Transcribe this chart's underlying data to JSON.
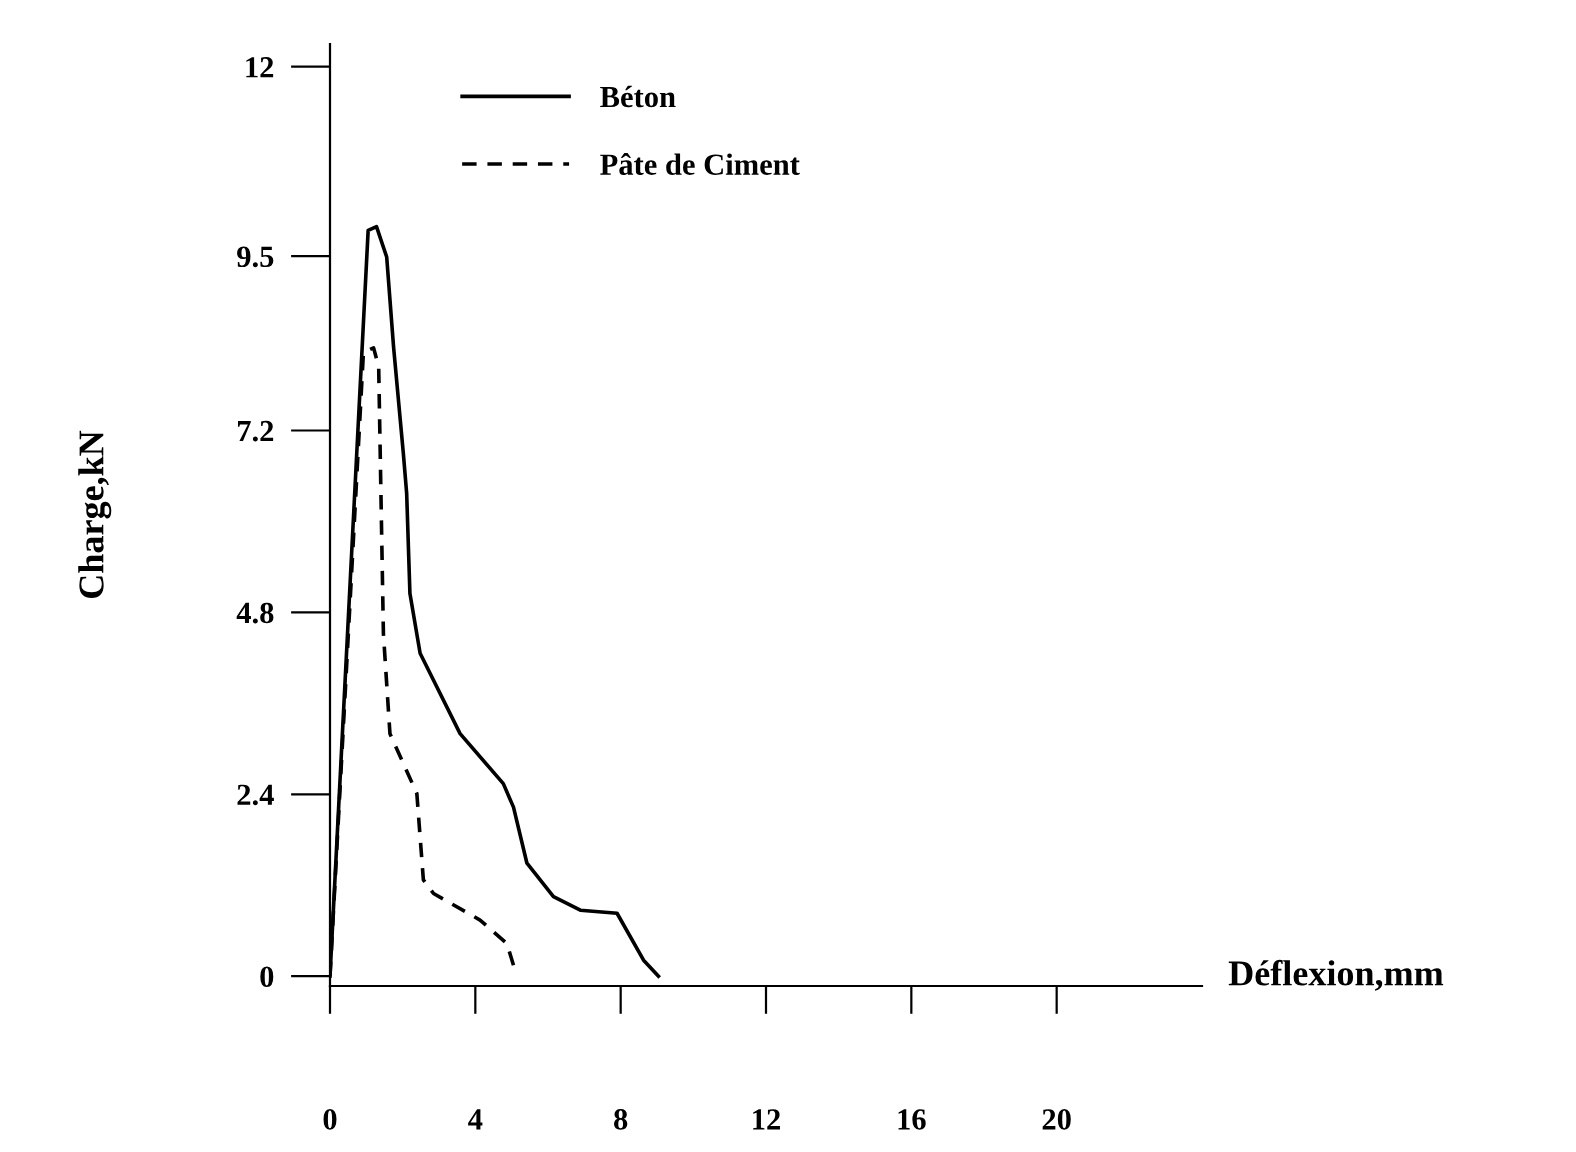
{
  "chart_data": {
    "type": "line",
    "xlabel": "Déflexion,mm",
    "ylabel": "Charge,kN",
    "xlim": [
      0,
      24
    ],
    "xticks": [
      0,
      4,
      8,
      12,
      16,
      20
    ],
    "ylim": [
      -0.13,
      12.3
    ],
    "yticks": [
      0,
      2.4,
      4.8,
      7.2,
      9.5,
      12
    ],
    "grid": false,
    "legend": "top left",
    "marker": "none",
    "series": [
      {
        "name": "Béton",
        "color": "#000000",
        "line_style": "solid",
        "x": [
          0,
          1.05,
          1.28,
          1.56,
          1.75,
          2.02,
          2.11,
          2.2,
          2.48,
          3.58,
          4.77,
          5.05,
          5.42,
          6.15,
          6.89,
          7.9,
          8.63,
          9.04
        ],
        "values": [
          0,
          9.84,
          9.89,
          9.49,
          8.3,
          6.89,
          6.37,
          5.05,
          4.26,
          3.2,
          2.54,
          2.23,
          1.49,
          1.05,
          0.87,
          0.83,
          0.21,
          0
        ]
      },
      {
        "name": "Pâte de Ciment",
        "color": "#000000",
        "line_style": "dashed",
        "x": [
          0,
          0.92,
          1.2,
          1.34,
          1.47,
          1.65,
          2.39,
          2.57,
          2.85,
          4.13,
          4.87,
          5.09
        ],
        "values": [
          0,
          8.23,
          8.29,
          8.04,
          4.52,
          3.2,
          2.41,
          1.27,
          1.09,
          0.74,
          0.43,
          0.08
        ]
      }
    ]
  }
}
